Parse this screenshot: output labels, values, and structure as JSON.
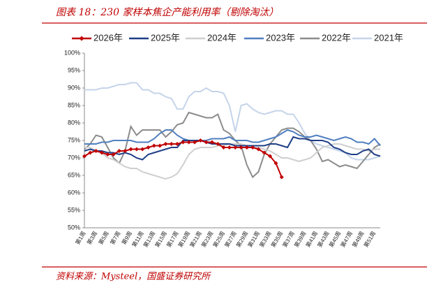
{
  "chart_data": {
    "type": "line",
    "title": "图表 18：230 家样本焦企产能利用率（剔除淘汰）",
    "source": "资料来源：Mysteel，国盛证券研究所",
    "categories": [
      "第1周",
      null,
      "第3周",
      null,
      "第5周",
      null,
      "第7周",
      null,
      "第9周",
      null,
      "第11周",
      null,
      "第13周",
      null,
      "第15周",
      null,
      "第17周",
      null,
      "第19周",
      null,
      "第21周",
      null,
      "第23周",
      null,
      "第25周",
      null,
      "第27周",
      null,
      "第29周",
      null,
      "第31周",
      null,
      "第33周",
      null,
      "第35周",
      null,
      "第37周",
      null,
      "第39周",
      null,
      "第41周",
      null,
      "第43周",
      null,
      "第45周",
      null,
      "第47周",
      null,
      "第49周",
      null,
      "第51周",
      null
    ],
    "ylim": [
      50,
      100
    ],
    "yticks": [
      {
        "value": 50,
        "label": "50%"
      },
      {
        "value": 55,
        "label": "55%"
      },
      {
        "value": 60,
        "label": "60%"
      },
      {
        "value": 65,
        "label": "65%"
      },
      {
        "value": 70,
        "label": "70%"
      },
      {
        "value": 75,
        "label": "75%"
      },
      {
        "value": 80,
        "label": "80%"
      },
      {
        "value": 85,
        "label": "85%"
      },
      {
        "value": 90,
        "label": "90%"
      },
      {
        "value": 95,
        "label": "95%"
      },
      {
        "value": 100,
        "label": "100%"
      }
    ],
    "grid": false,
    "legend": "top",
    "series": [
      {
        "name": "2026年",
        "color": "#c00000",
        "marker": "diamond",
        "values": [
          70.5,
          71.5,
          72,
          71.5,
          71,
          71,
          72,
          72,
          72.5,
          72.5,
          72.5,
          73,
          73.5,
          73.5,
          74,
          74,
          74,
          74.5,
          74.5,
          74.5,
          75,
          74.5,
          74.5,
          74,
          73,
          73,
          73,
          73,
          73,
          73,
          72.5,
          71.5,
          70.5,
          68.5,
          64.5,
          null,
          null,
          null,
          null,
          null,
          null,
          null,
          null,
          null,
          null,
          null,
          null,
          null,
          null,
          null,
          null,
          null
        ]
      },
      {
        "name": "2025年",
        "color": "#1f3f87",
        "values": [
          72,
          72.5,
          72,
          72,
          71.5,
          71.5,
          71,
          71.5,
          71,
          70,
          69.5,
          71,
          71.5,
          72,
          72.5,
          73,
          73,
          75,
          75,
          75,
          75,
          74.5,
          74,
          74,
          74,
          74,
          73.5,
          73.5,
          73.5,
          73.5,
          73.5,
          73.5,
          74,
          74,
          73.5,
          73,
          76,
          75.5,
          75.5,
          75,
          75,
          75,
          74.5,
          73,
          72.5,
          71.5,
          71,
          71,
          72,
          72.5,
          71,
          70.5
        ]
      },
      {
        "name": "2024年",
        "color": "#cfcfcf",
        "values": [
          73,
          73,
          72,
          71.5,
          70,
          69.5,
          68.5,
          67.5,
          67,
          67,
          66,
          65.5,
          65,
          64.5,
          64,
          64.5,
          65.5,
          68,
          71,
          72.5,
          73,
          73,
          73,
          73.5,
          73.5,
          74,
          74,
          74,
          73.5,
          73,
          73,
          72.5,
          72,
          71,
          70,
          70,
          69.5,
          69,
          69.5,
          70,
          71.5,
          73,
          73.5,
          74,
          74,
          73.5,
          73,
          72.5,
          72.5,
          72,
          72.5,
          72.5
        ]
      },
      {
        "name": "2023年",
        "color": "#4f7fc0",
        "values": [
          74,
          74,
          74,
          74.5,
          74.5,
          75,
          75,
          75,
          75,
          74.5,
          74.5,
          74.5,
          75.5,
          77,
          78,
          78,
          76.5,
          75.5,
          75,
          75,
          75,
          75,
          75.5,
          75.5,
          75.5,
          76,
          75,
          75,
          75,
          74.5,
          74.5,
          75,
          75.5,
          76,
          77,
          78,
          77.5,
          76.5,
          76,
          76,
          76.5,
          76,
          75.5,
          75,
          75.5,
          76,
          75.5,
          74.5,
          74.5,
          74,
          75.5,
          73.5
        ]
      },
      {
        "name": "2022年",
        "color": "#8c8c8c",
        "values": [
          72.5,
          74,
          76.5,
          76,
          73,
          70,
          68.5,
          72,
          79,
          76.5,
          78,
          78,
          78,
          78,
          76,
          77.5,
          79.5,
          80,
          83,
          82.5,
          82,
          81.5,
          81.5,
          82.5,
          78,
          77,
          75,
          73.5,
          68,
          64.5,
          66,
          71,
          74,
          76,
          78,
          78.5,
          78.5,
          77.5,
          76,
          75,
          72.5,
          69,
          69.5,
          68.5,
          67.5,
          68,
          67.5,
          67,
          69,
          71,
          73,
          74
        ]
      },
      {
        "name": "2021年",
        "color": "#c5d4ea",
        "values": [
          89.5,
          89.5,
          89.5,
          90,
          90,
          90.5,
          91,
          91,
          91.5,
          91.5,
          89.5,
          89.5,
          88.5,
          88.5,
          87.5,
          87,
          84,
          84,
          87.5,
          89,
          89,
          90,
          89,
          89,
          88.5,
          85,
          77.5,
          85,
          85.5,
          84,
          83,
          82.5,
          83,
          83.5,
          83.5,
          82.5,
          82.5,
          80,
          77,
          75,
          74,
          73.5,
          73,
          72.5,
          72,
          71.5,
          70,
          69.5,
          69.5,
          69.5,
          70,
          70.5
        ]
      }
    ]
  }
}
